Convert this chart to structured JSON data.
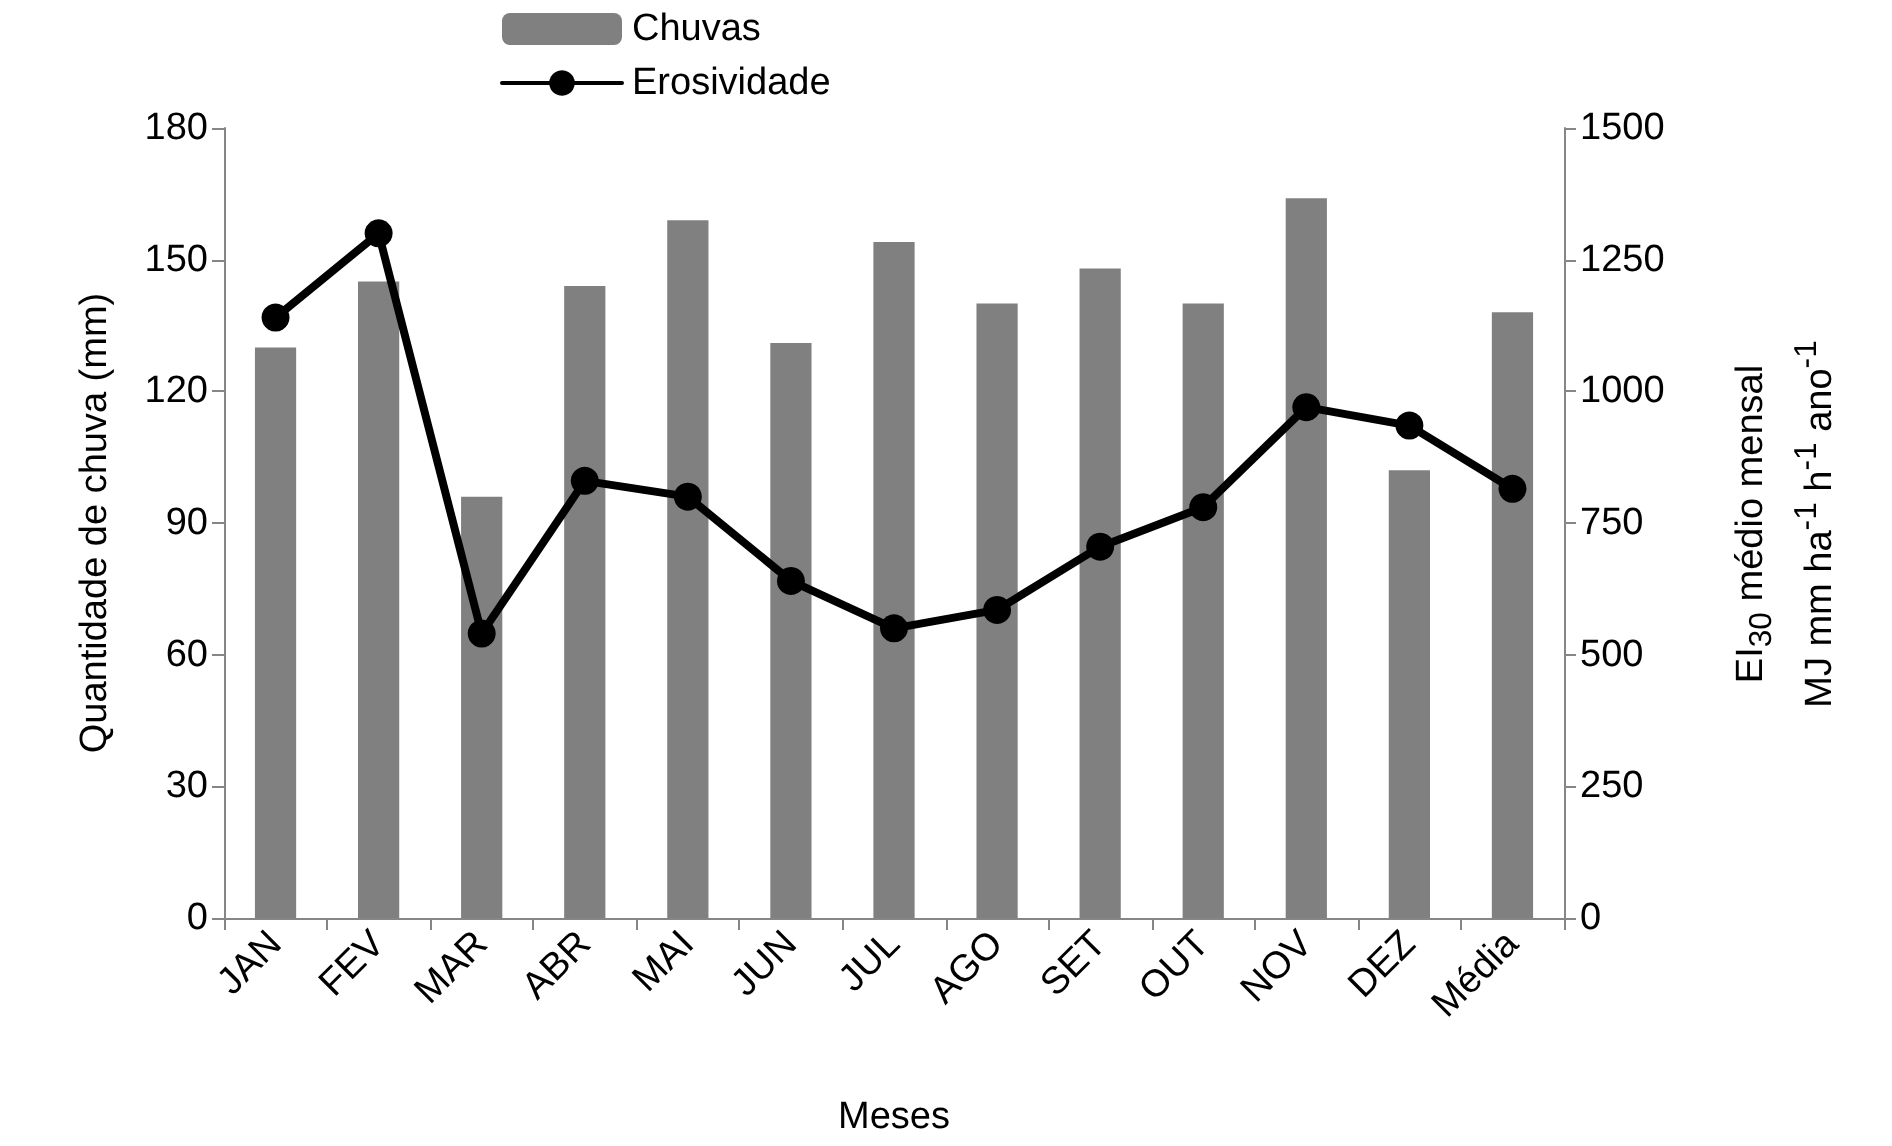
{
  "chart_data": {
    "type": "bar",
    "xlabel": "Meses",
    "ylabel": "Quantidade de chuva (mm)",
    "y2label": "EI$_{30}$ médio mensal\nMJ mm ha$^{-1}$ h$^{-1}$ ano$^{-1}$",
    "categories": [
      "JAN",
      "FEV",
      "MAR",
      "ABR",
      "MAI",
      "JUN",
      "JUL",
      "AGO",
      "SET",
      "OUT",
      "NOV",
      "DEZ",
      "Média"
    ],
    "series": [
      {
        "name": "Chuvas",
        "color": "#808080",
        "values": [
          130,
          145,
          96,
          144,
          159,
          131,
          154,
          140,
          148,
          140,
          164,
          102,
          138
        ]
      },
      {
        "name": "Erosividade",
        "type": "line",
        "axis": "y2",
        "color": "#000000",
        "marker": "circle",
        "line_style": "solid",
        "values": [
          1140,
          1300,
          540,
          830,
          800,
          640,
          550,
          585,
          705,
          780,
          970,
          935,
          815
        ]
      }
    ],
    "ylim": [
      0,
      180
    ],
    "yticks": [
      0,
      30,
      60,
      90,
      120,
      150,
      180
    ],
    "y2lim": [
      0,
      1500
    ],
    "y2ticks": [
      0,
      250,
      500,
      750,
      1000,
      1250,
      1500
    ],
    "grid": false,
    "legend": "top"
  }
}
